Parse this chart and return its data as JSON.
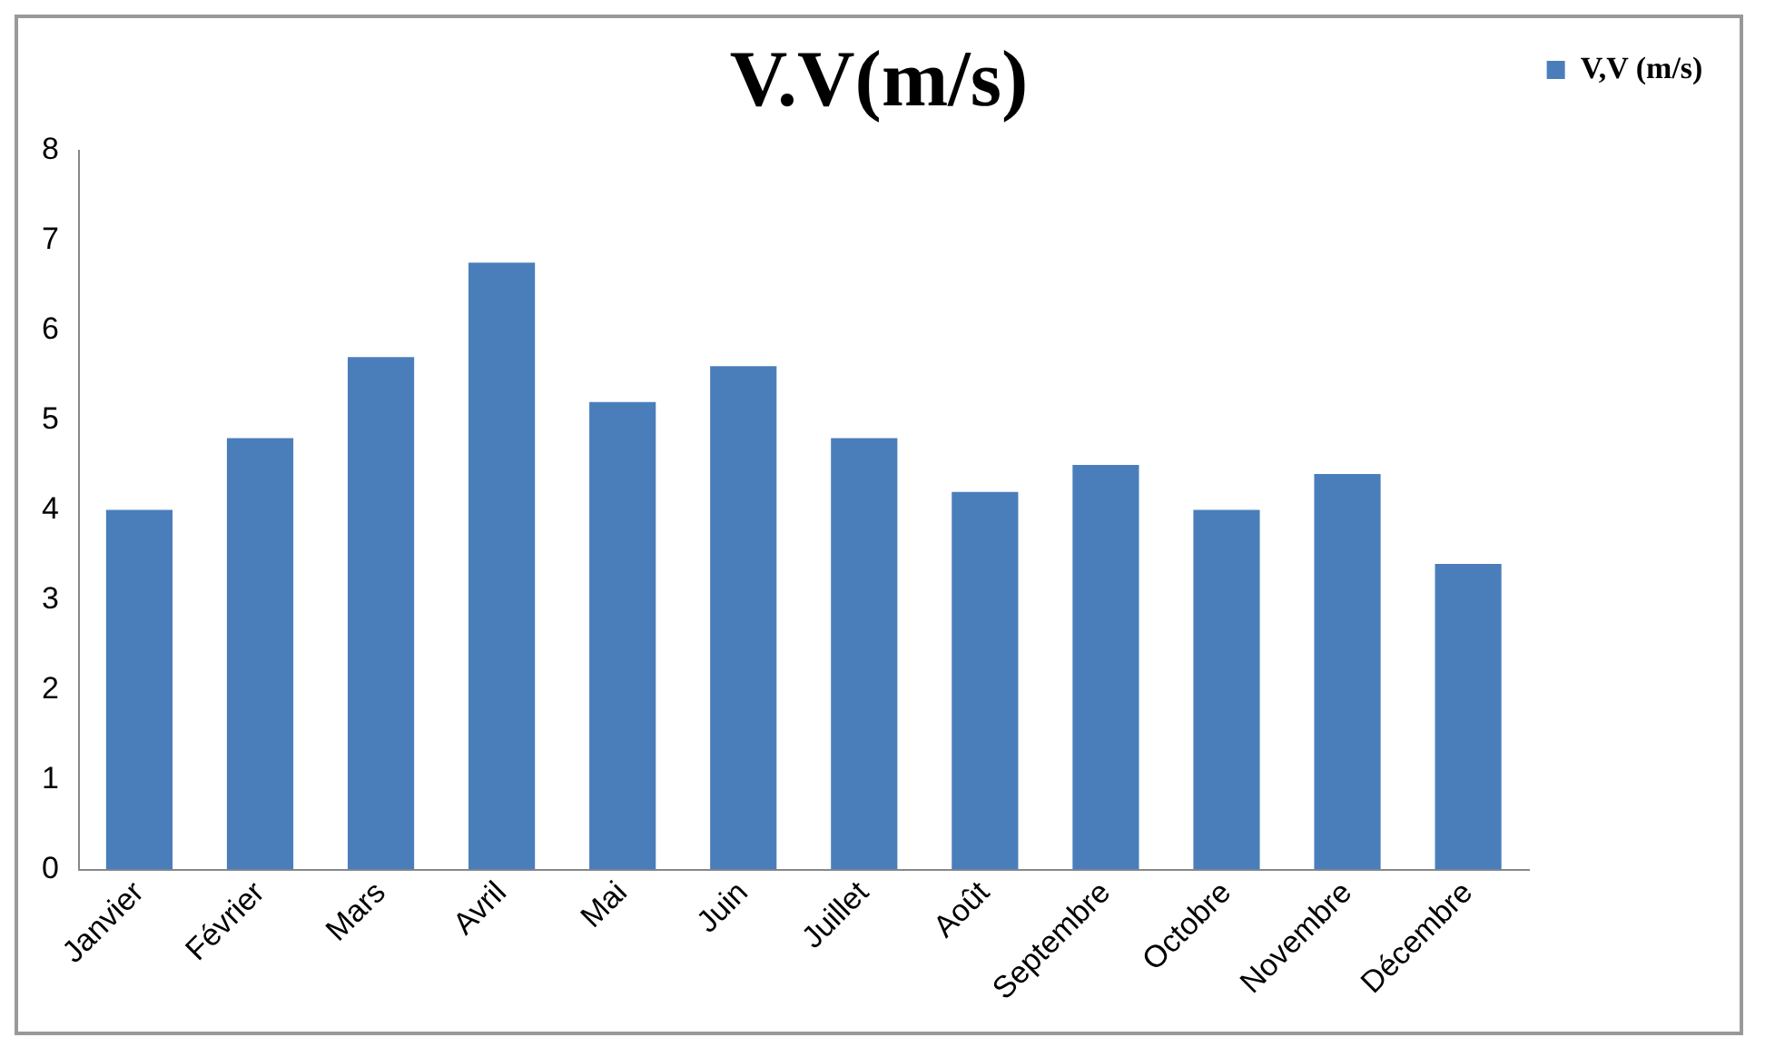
{
  "chart_data": {
    "type": "bar",
    "title": "V.V(m/s)",
    "categories": [
      "Janvier",
      "Février",
      "Mars",
      "Avril",
      "Mai",
      "Juin",
      "Juillet",
      "Août",
      "Septembre",
      "Octobre",
      "Novembre",
      "Décembre"
    ],
    "series": [
      {
        "name": "V,V (m/s)",
        "color": "#4a7ebb",
        "values": [
          4.0,
          4.8,
          5.7,
          6.75,
          5.2,
          5.6,
          4.8,
          4.2,
          4.5,
          4.0,
          4.4,
          3.4
        ]
      }
    ],
    "ylim": [
      0,
      8
    ],
    "yticks": [
      0,
      1,
      2,
      3,
      4,
      5,
      6,
      7,
      8
    ],
    "grid": false,
    "legend": "right"
  }
}
